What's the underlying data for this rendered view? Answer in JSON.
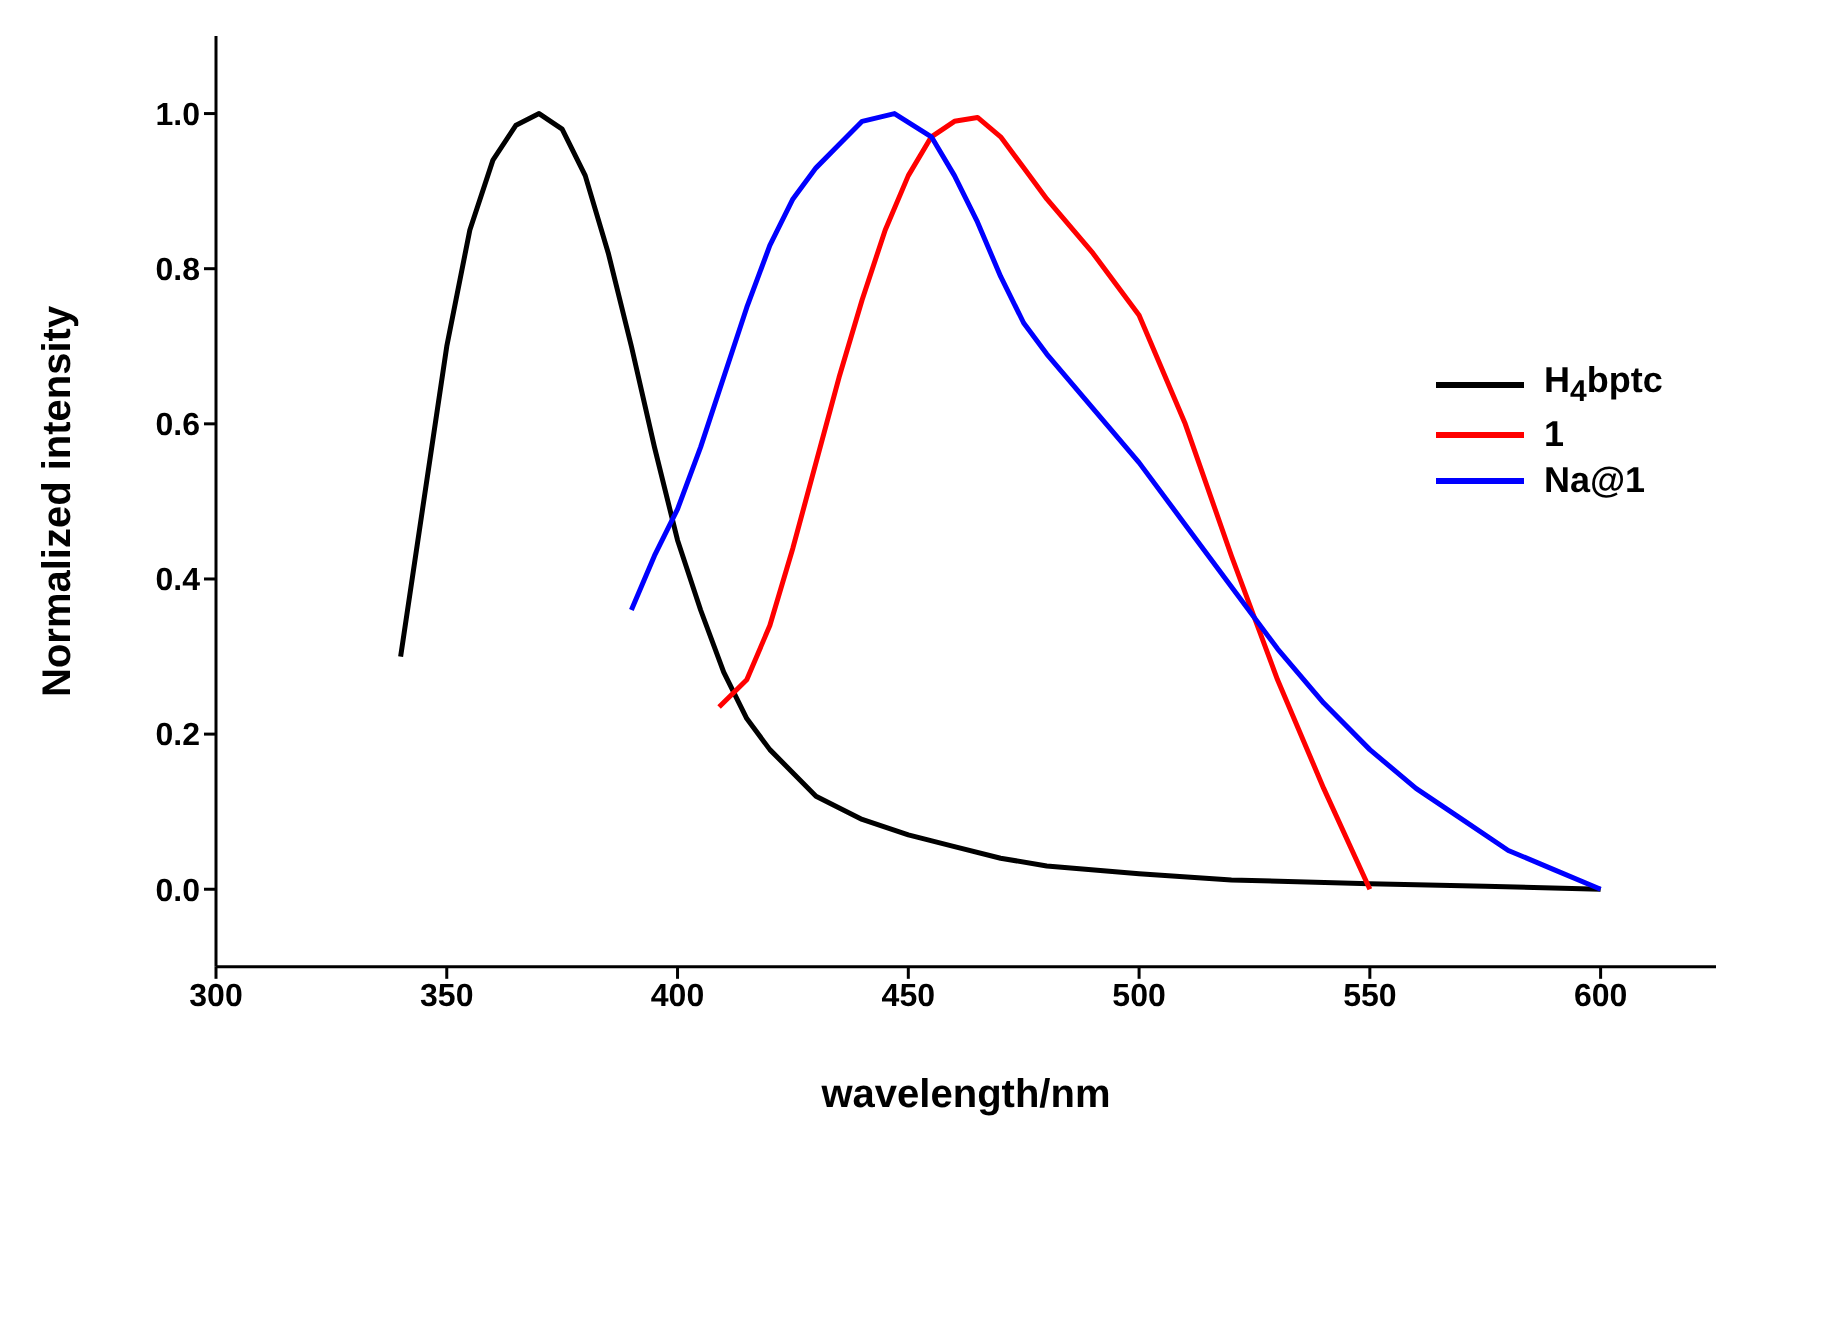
{
  "chart_data": {
    "type": "line",
    "xlabel": "wavelength/nm",
    "ylabel": "Normalized intensity",
    "xlim": [
      300,
      625
    ],
    "ylim": [
      -0.1,
      1.1
    ],
    "xticks": [
      300,
      350,
      400,
      450,
      500,
      550,
      600
    ],
    "yticks": [
      {
        "value": 0,
        "label": "0.0"
      },
      {
        "value": 0.2,
        "label": "0.2"
      },
      {
        "value": 0.4,
        "label": "0.4"
      },
      {
        "value": 0.6,
        "label": "0.6"
      },
      {
        "value": 0.8,
        "label": "0.8"
      },
      {
        "value": 1,
        "label": "1.0"
      }
    ],
    "grid": false,
    "legend": "right",
    "marker": "none",
    "line_style": "solid",
    "series": [
      {
        "name": "H$_{4}$bptc",
        "color": "#000000",
        "x": [
          340,
          345,
          350,
          355,
          360,
          365,
          370,
          375,
          380,
          385,
          390,
          395,
          400,
          405,
          410,
          415,
          420,
          430,
          440,
          450,
          460,
          470,
          480,
          500,
          520,
          550,
          575,
          600
        ],
        "values": [
          0.3,
          0.5,
          0.7,
          0.85,
          0.94,
          0.985,
          1.0,
          0.98,
          0.92,
          0.82,
          0.7,
          0.57,
          0.45,
          0.36,
          0.28,
          0.22,
          0.18,
          0.12,
          0.09,
          0.07,
          0.055,
          0.04,
          0.03,
          0.02,
          0.012,
          0.007,
          0.004,
          0.0
        ]
      },
      {
        "name": "1",
        "color": "#ff0000",
        "x": [
          409,
          415,
          420,
          425,
          430,
          435,
          440,
          445,
          450,
          455,
          460,
          465,
          470,
          475,
          480,
          490,
          500,
          510,
          520,
          530,
          540,
          550
        ],
        "values": [
          0.235,
          0.27,
          0.34,
          0.44,
          0.55,
          0.66,
          0.76,
          0.85,
          0.92,
          0.97,
          0.99,
          0.995,
          0.97,
          0.93,
          0.89,
          0.82,
          0.74,
          0.6,
          0.43,
          0.27,
          0.13,
          0.0
        ]
      },
      {
        "name": "Na@1",
        "color": "#0000ff",
        "x": [
          390,
          395,
          400,
          405,
          410,
          415,
          420,
          425,
          430,
          435,
          440,
          447,
          455,
          460,
          465,
          470,
          475,
          480,
          490,
          500,
          510,
          520,
          530,
          540,
          550,
          560,
          570,
          580,
          590,
          600
        ],
        "values": [
          0.36,
          0.43,
          0.49,
          0.57,
          0.66,
          0.75,
          0.83,
          0.89,
          0.93,
          0.96,
          0.99,
          1.0,
          0.97,
          0.92,
          0.86,
          0.79,
          0.73,
          0.69,
          0.62,
          0.55,
          0.47,
          0.39,
          0.31,
          0.24,
          0.18,
          0.13,
          0.09,
          0.05,
          0.025,
          0.0
        ]
      }
    ]
  }
}
